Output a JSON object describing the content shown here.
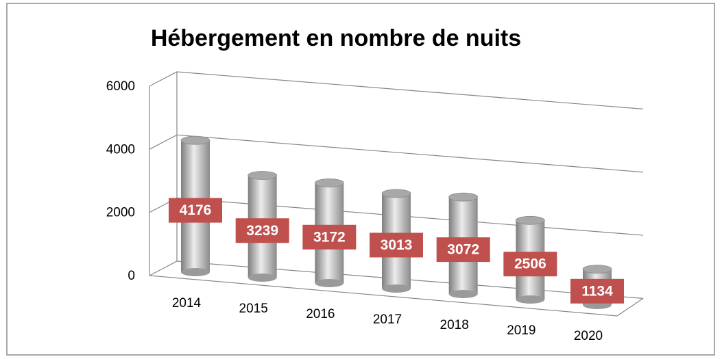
{
  "chart_data": {
    "type": "bar",
    "title": "Hébergement en nombre de nuits",
    "categories": [
      "2014",
      "2015",
      "2016",
      "2017",
      "2018",
      "2019",
      "2020"
    ],
    "values": [
      4176,
      3239,
      3172,
      3013,
      3072,
      2506,
      1134
    ],
    "color": "#b0b0b0",
    "label_color": "#c0504d",
    "ylim": [
      0,
      6000
    ],
    "yticks": [
      0,
      2000,
      4000,
      6000
    ],
    "grid": true
  }
}
